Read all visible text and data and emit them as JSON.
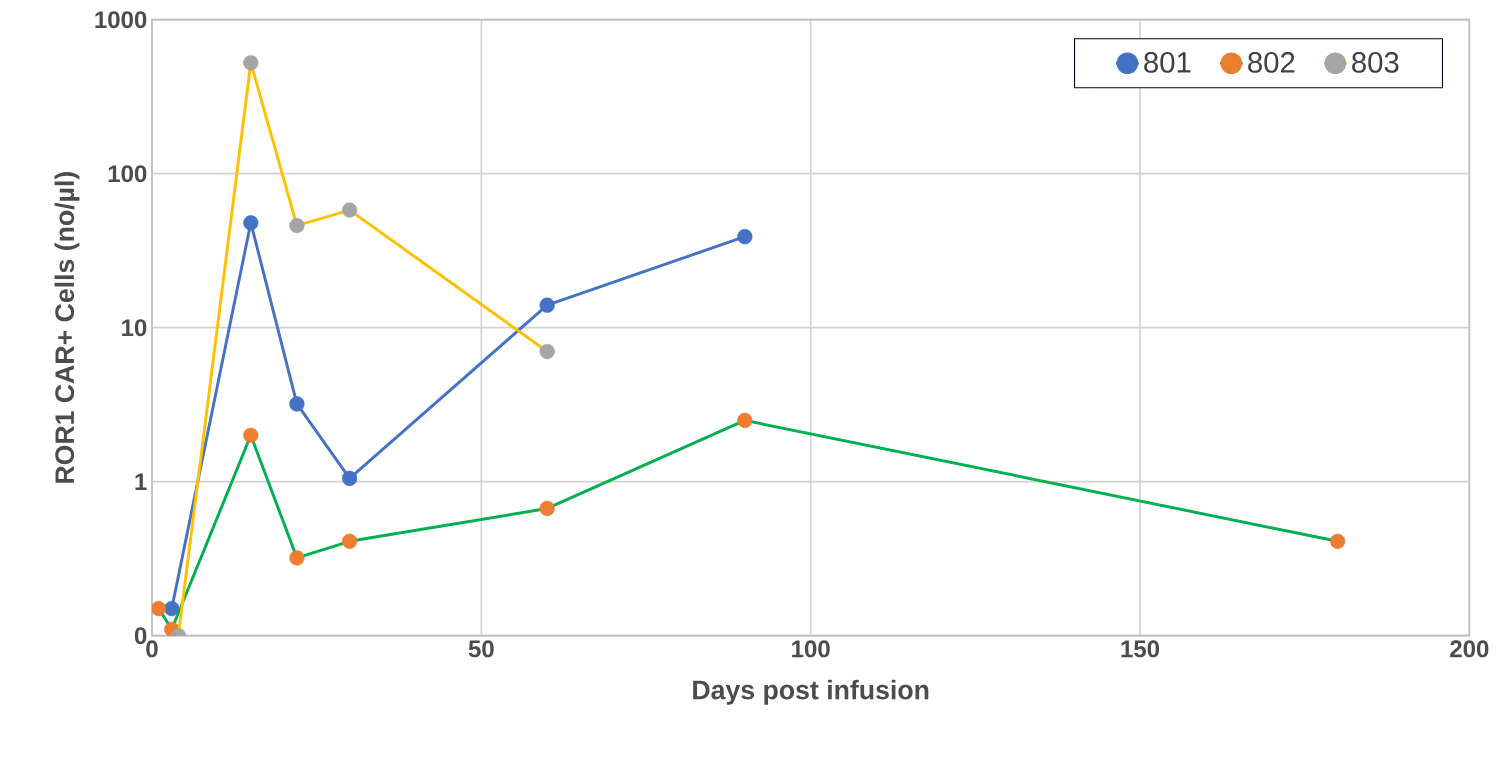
{
  "chart_data": {
    "type": "line",
    "xlabel": "Days post infusion",
    "ylabel": "ROR1 CAR+ Cells (no/µl)",
    "xlim": [
      0,
      200
    ],
    "xticks": [
      0,
      50,
      100,
      150,
      200
    ],
    "ylim": [
      0.1,
      1000
    ],
    "yticks": [
      {
        "value": 0.1,
        "label": "0"
      },
      1,
      10,
      100,
      1000
    ],
    "log": "y",
    "grid": true,
    "legend": "top right",
    "marker": "circle",
    "series": [
      {
        "name": "801",
        "color": "#4472c4",
        "colors": [
          "#4472c4",
          "#4472c4",
          "#4472c4",
          "#4472c4",
          "#4472c4",
          "#4472c4"
        ],
        "x": [
          3,
          15,
          22,
          30,
          60,
          90
        ],
        "values": [
          0.15,
          48,
          3.2,
          1.05,
          14,
          39
        ]
      },
      {
        "name": "802",
        "color": "#00b050",
        "colors": [
          "#ed7d31",
          "#ed7d31",
          "#ed7d31",
          "#ed7d31",
          "#ed7d31",
          "#ed7d31",
          "#ed7d31",
          "#ed7d31"
        ],
        "x": [
          1,
          3,
          15,
          22,
          30,
          60,
          90,
          180
        ],
        "values": [
          0.15,
          0.11,
          2.0,
          0.32,
          0.41,
          0.67,
          2.5,
          0.41
        ]
      },
      {
        "name": "803",
        "color": "#ffc000",
        "colors": [
          "#a5a5a5",
          "#a5a5a5",
          "#a5a5a5",
          "#a5a5a5",
          "#a5a5a5"
        ],
        "x": [
          4,
          15,
          22,
          30,
          60
        ],
        "values": [
          0.1,
          525,
          46,
          58,
          7.0
        ]
      }
    ]
  }
}
